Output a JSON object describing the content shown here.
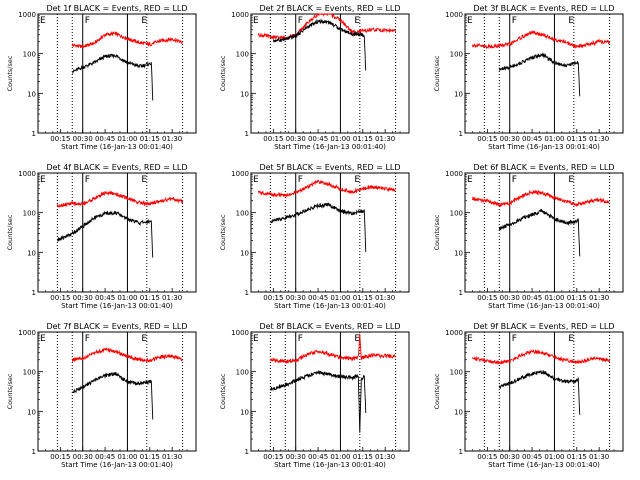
{
  "chart_data": [
    {
      "type": "line",
      "title": "Det 1f BLACK = Events, RED = LLD",
      "ylabel": "Counts/sec",
      "xlabel": "Start Time (16-Jan-13 00:01:40)",
      "yscale": "log",
      "ylim": [
        1,
        1000
      ],
      "y_ticks": [
        "1",
        "10",
        "100",
        "1000"
      ],
      "x_ticks": [
        "00:15",
        "00:30",
        "00:45",
        "01:00",
        "01:15",
        "01:30"
      ],
      "flag_labels": [
        "E",
        "F",
        "E"
      ],
      "series": [
        {
          "color": "#ff0000",
          "x": [
            "00:23",
            "00:30",
            "00:38",
            "00:45",
            "00:52",
            "01:00",
            "01:08",
            "01:15",
            "01:22",
            "01:30",
            "01:37"
          ],
          "y": [
            165,
            150,
            185,
            300,
            320,
            240,
            190,
            170,
            210,
            235,
            190
          ]
        },
        {
          "color": "#000000",
          "x": [
            "00:23",
            "00:30",
            "00:38",
            "00:45",
            "00:52",
            "01:00",
            "01:08",
            "01:15",
            "01:16",
            "01:17"
          ],
          "y": [
            35,
            45,
            60,
            85,
            90,
            60,
            48,
            55,
            60,
            7
          ]
        }
      ]
    },
    {
      "type": "line",
      "title": "Det 2f BLACK = Events, RED = LLD",
      "ylabel": "Counts/sec",
      "xlabel": "Start Time (16-Jan-13 00:01:40)",
      "yscale": "log",
      "ylim": [
        1,
        1000
      ],
      "y_ticks": [
        "1",
        "10",
        "100",
        "1000"
      ],
      "x_ticks": [
        "00:15",
        "00:30",
        "00:45",
        "01:00",
        "01:15",
        "01:30"
      ],
      "flag_labels": [
        "E",
        "F",
        "E"
      ],
      "series": [
        {
          "color": "#ff0000",
          "x": [
            "00:05",
            "00:15",
            "00:23",
            "00:30",
            "00:38",
            "00:45",
            "00:52",
            "01:00",
            "01:08",
            "01:15",
            "01:22",
            "01:30",
            "01:37"
          ],
          "y": [
            300,
            260,
            250,
            290,
            600,
            1000,
            1050,
            700,
            350,
            370,
            400,
            390,
            380
          ]
        },
        {
          "color": "#000000",
          "x": [
            "00:15",
            "00:23",
            "00:30",
            "00:38",
            "00:45",
            "00:52",
            "01:00",
            "01:08",
            "01:15",
            "01:16",
            "01:17"
          ],
          "y": [
            210,
            230,
            280,
            470,
            650,
            640,
            420,
            310,
            300,
            250,
            35
          ]
        }
      ]
    },
    {
      "type": "line",
      "title": "Det 3f BLACK = Events, RED = LLD",
      "ylabel": "Counts/sec",
      "xlabel": "Start Time (16-Jan-13 00:01:40)",
      "yscale": "log",
      "ylim": [
        1,
        1000
      ],
      "y_ticks": [
        "1",
        "10",
        "100",
        "1000"
      ],
      "x_ticks": [
        "00:15",
        "00:30",
        "00:45",
        "01:00",
        "01:15",
        "01:30"
      ],
      "flag_labels": [
        "E",
        "F",
        "E"
      ],
      "series": [
        {
          "color": "#ff0000",
          "x": [
            "00:05",
            "00:15",
            "00:23",
            "00:30",
            "00:38",
            "00:45",
            "00:52",
            "01:00",
            "01:08",
            "01:15",
            "01:22",
            "01:30",
            "01:37"
          ],
          "y": [
            165,
            150,
            160,
            170,
            260,
            340,
            300,
            230,
            190,
            150,
            170,
            200,
            190
          ]
        },
        {
          "color": "#000000",
          "x": [
            "00:23",
            "00:30",
            "00:38",
            "00:45",
            "00:52",
            "01:00",
            "01:08",
            "01:15",
            "01:16",
            "01:17"
          ],
          "y": [
            40,
            45,
            60,
            80,
            95,
            60,
            50,
            60,
            62,
            8
          ]
        }
      ]
    },
    {
      "type": "line",
      "title": "Det 4f BLACK = Events, RED = LLD",
      "ylabel": "Counts/sec",
      "xlabel": "Start Time (16-Jan-13 00:01:40)",
      "yscale": "log",
      "ylim": [
        1,
        1000
      ],
      "y_ticks": [
        "1",
        "10",
        "100",
        "1000"
      ],
      "x_ticks": [
        "00:15",
        "00:30",
        "00:45",
        "01:00",
        "01:15",
        "01:30"
      ],
      "flag_labels": [
        "E",
        "F",
        "E"
      ],
      "series": [
        {
          "color": "#ff0000",
          "x": [
            "00:13",
            "00:23",
            "00:30",
            "00:38",
            "00:45",
            "00:52",
            "01:00",
            "01:08",
            "01:15",
            "01:22",
            "01:30",
            "01:37"
          ],
          "y": [
            150,
            170,
            165,
            230,
            320,
            300,
            230,
            180,
            165,
            200,
            220,
            190
          ]
        },
        {
          "color": "#000000",
          "x": [
            "00:13",
            "00:23",
            "00:30",
            "00:38",
            "00:45",
            "00:52",
            "01:00",
            "01:08",
            "01:15",
            "01:16",
            "01:17"
          ],
          "y": [
            20,
            30,
            45,
            75,
            95,
            100,
            70,
            55,
            60,
            60,
            7
          ]
        }
      ]
    },
    {
      "type": "line",
      "title": "Det 5f BLACK = Events, RED = LLD",
      "ylabel": "Counts/sec",
      "xlabel": "Start Time (16-Jan-13 00:01:40)",
      "yscale": "log",
      "ylim": [
        1,
        1000
      ],
      "y_ticks": [
        "1",
        "10",
        "100",
        "1000"
      ],
      "x_ticks": [
        "00:15",
        "00:30",
        "00:45",
        "01:00",
        "01:15",
        "01:30"
      ],
      "flag_labels": [
        "E",
        "F",
        "E"
      ],
      "series": [
        {
          "color": "#ff0000",
          "x": [
            "00:05",
            "00:15",
            "00:23",
            "00:30",
            "00:38",
            "00:45",
            "00:52",
            "01:00",
            "01:08",
            "01:15",
            "01:22",
            "01:30",
            "01:37"
          ],
          "y": [
            320,
            290,
            270,
            320,
            450,
            600,
            520,
            400,
            330,
            400,
            450,
            400,
            380
          ]
        },
        {
          "color": "#000000",
          "x": [
            "00:13",
            "00:23",
            "00:30",
            "00:38",
            "00:45",
            "00:52",
            "01:00",
            "01:08",
            "01:15",
            "01:16",
            "01:17"
          ],
          "y": [
            60,
            75,
            90,
            120,
            150,
            160,
            110,
            95,
            110,
            120,
            10
          ]
        }
      ]
    },
    {
      "type": "line",
      "title": "Det 6f BLACK = Events, RED = LLD",
      "ylabel": "Counts/sec",
      "xlabel": "Start Time (16-Jan-13 00:01:40)",
      "yscale": "log",
      "ylim": [
        1,
        1000
      ],
      "y_ticks": [
        "1",
        "10",
        "100",
        "1000"
      ],
      "x_ticks": [
        "00:15",
        "00:30",
        "00:45",
        "01:00",
        "01:15",
        "01:30"
      ],
      "flag_labels": [
        "E",
        "F",
        "E"
      ],
      "series": [
        {
          "color": "#ff0000",
          "x": [
            "00:05",
            "00:15",
            "00:23",
            "00:30",
            "00:38",
            "00:45",
            "00:52",
            "01:00",
            "01:08",
            "01:15",
            "01:22",
            "01:30",
            "01:37"
          ],
          "y": [
            220,
            200,
            160,
            170,
            260,
            330,
            310,
            240,
            190,
            160,
            190,
            210,
            180
          ]
        },
        {
          "color": "#000000",
          "x": [
            "00:23",
            "00:30",
            "00:38",
            "00:45",
            "00:52",
            "01:00",
            "01:08",
            "01:15",
            "01:16",
            "01:17"
          ],
          "y": [
            40,
            50,
            70,
            90,
            110,
            70,
            55,
            60,
            65,
            8
          ]
        }
      ]
    },
    {
      "type": "line",
      "title": "Det 7f BLACK = Events, RED = LLD",
      "ylabel": "Counts/sec",
      "xlabel": "Start Time (16-Jan-13 00:01:40)",
      "yscale": "log",
      "ylim": [
        1,
        1000
      ],
      "y_ticks": [
        "1",
        "10",
        "100",
        "1000"
      ],
      "x_ticks": [
        "00:15",
        "00:30",
        "00:45",
        "01:00",
        "01:15",
        "01:30"
      ],
      "flag_labels": [
        "E",
        "F",
        "E"
      ],
      "series": [
        {
          "color": "#ff0000",
          "x": [
            "00:23",
            "00:30",
            "00:38",
            "00:45",
            "00:52",
            "01:00",
            "01:08",
            "01:15",
            "01:22",
            "01:30",
            "01:37"
          ],
          "y": [
            200,
            210,
            300,
            360,
            320,
            240,
            200,
            190,
            230,
            250,
            200
          ]
        },
        {
          "color": "#000000",
          "x": [
            "00:23",
            "00:30",
            "00:38",
            "00:45",
            "00:52",
            "01:00",
            "01:08",
            "01:15",
            "01:16",
            "01:17"
          ],
          "y": [
            30,
            40,
            60,
            80,
            90,
            55,
            50,
            55,
            60,
            6
          ]
        }
      ]
    },
    {
      "type": "line",
      "title": "Det 8f BLACK = Events, RED = LLD",
      "ylabel": "Counts/sec",
      "xlabel": "Start Time (16-Jan-13 00:01:40)",
      "yscale": "log",
      "ylim": [
        1,
        1000
      ],
      "y_ticks": [
        "1",
        "10",
        "100",
        "1000"
      ],
      "x_ticks": [
        "00:15",
        "00:30",
        "00:45",
        "01:00",
        "01:15",
        "01:30"
      ],
      "flag_labels": [
        "E",
        "F",
        "E"
      ],
      "series": [
        {
          "color": "#ff0000",
          "x": [
            "00:13",
            "00:23",
            "00:30",
            "00:38",
            "00:45",
            "00:52",
            "01:00",
            "01:08",
            "01:12",
            "01:13",
            "01:14",
            "01:16",
            "01:22",
            "01:30",
            "01:37"
          ],
          "y": [
            200,
            180,
            190,
            270,
            320,
            280,
            230,
            210,
            230,
            900,
            220,
            230,
            260,
            250,
            240
          ]
        },
        {
          "color": "#000000",
          "x": [
            "00:13",
            "00:23",
            "00:30",
            "00:38",
            "00:45",
            "00:52",
            "01:00",
            "01:08",
            "01:12",
            "01:13",
            "01:14",
            "01:16",
            "01:17"
          ],
          "y": [
            35,
            45,
            60,
            80,
            95,
            85,
            75,
            70,
            80,
            3,
            65,
            75,
            10
          ]
        }
      ]
    },
    {
      "type": "line",
      "title": "Det 9f BLACK = Events, RED = LLD",
      "ylabel": "Counts/sec",
      "xlabel": "Start Time (16-Jan-13 00:01:40)",
      "yscale": "log",
      "ylim": [
        1,
        1000
      ],
      "y_ticks": [
        "1",
        "10",
        "100",
        "1000"
      ],
      "x_ticks": [
        "00:15",
        "00:30",
        "00:45",
        "01:00",
        "01:15",
        "01:30"
      ],
      "flag_labels": [
        "E",
        "F",
        "E"
      ],
      "series": [
        {
          "color": "#ff0000",
          "x": [
            "00:05",
            "00:15",
            "00:23",
            "00:30",
            "00:38",
            "00:45",
            "00:52",
            "01:00",
            "01:08",
            "01:15",
            "01:22",
            "01:30",
            "01:37"
          ],
          "y": [
            220,
            190,
            170,
            180,
            260,
            330,
            300,
            230,
            190,
            170,
            200,
            220,
            190
          ]
        },
        {
          "color": "#000000",
          "x": [
            "00:23",
            "00:30",
            "00:38",
            "00:45",
            "00:52",
            "01:00",
            "01:08",
            "01:15",
            "01:16",
            "01:17"
          ],
          "y": [
            40,
            50,
            70,
            90,
            100,
            65,
            55,
            60,
            65,
            8
          ]
        }
      ]
    }
  ]
}
